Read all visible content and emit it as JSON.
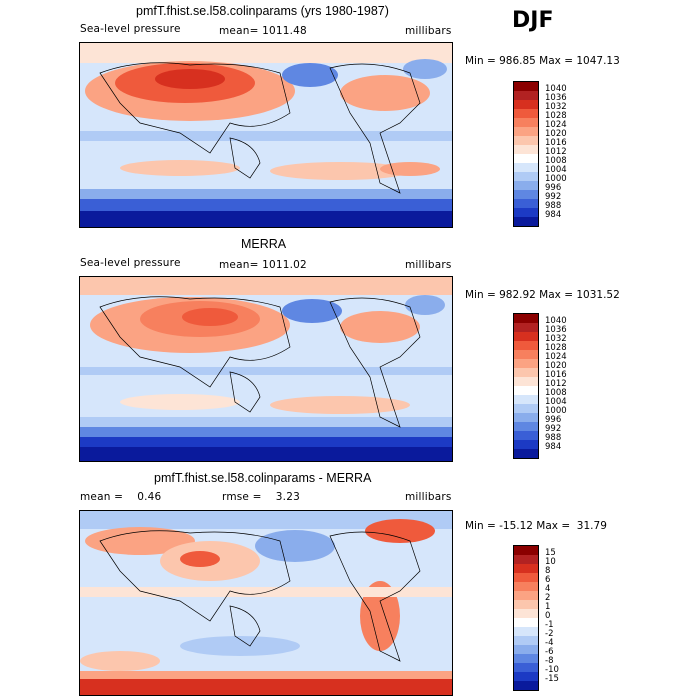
{
  "season": "DJF",
  "panels": [
    {
      "title": "pmfT.fhist.se.l58.colinparams (yrs 1980-1987)",
      "left_label": "Sea-level pressure",
      "mean_label": "mean= 1011.48",
      "units": "millibars",
      "minmax": "Min = 986.85 Max = 1047.13",
      "levels": [
        "1040",
        "1036",
        "1032",
        "1028",
        "1024",
        "1020",
        "1016",
        "1012",
        "1008",
        "1004",
        "1000",
        "996",
        "992",
        "988",
        "984"
      ],
      "colors": [
        "#8b0000",
        "#b22222",
        "#d7301f",
        "#ef5a3c",
        "#f7805e",
        "#fba383",
        "#fcc6ad",
        "#fde4d6",
        "#ffffff",
        "#d6e6fb",
        "#b0cbf5",
        "#8aadec",
        "#5f87e2",
        "#3a5fd6",
        "#1c3ac4",
        "#0a1a9c"
      ]
    },
    {
      "title": "MERRA",
      "left_label": "Sea-level pressure",
      "mean_label": "mean= 1011.02",
      "units": "millibars",
      "minmax": "Min = 982.92 Max = 1031.52",
      "levels": [
        "1040",
        "1036",
        "1032",
        "1028",
        "1024",
        "1020",
        "1016",
        "1012",
        "1008",
        "1004",
        "1000",
        "996",
        "992",
        "988",
        "984"
      ],
      "colors": [
        "#8b0000",
        "#b22222",
        "#d7301f",
        "#ef5a3c",
        "#f7805e",
        "#fba383",
        "#fcc6ad",
        "#fde4d6",
        "#ffffff",
        "#d6e6fb",
        "#b0cbf5",
        "#8aadec",
        "#5f87e2",
        "#3a5fd6",
        "#1c3ac4",
        "#0a1a9c"
      ]
    },
    {
      "title": "pmfT.fhist.se.l58.colinparams - MERRA",
      "left_label": "mean =    0.46",
      "mean_label": "rmse =    3.23",
      "units": "millibars",
      "minmax": "Min = -15.12 Max =  31.79",
      "levels": [
        "15",
        "10",
        "8",
        "6",
        "4",
        "2",
        "1",
        "0",
        "-1",
        "-2",
        "-4",
        "-6",
        "-8",
        "-10",
        "-15"
      ],
      "colors": [
        "#8b0000",
        "#b22222",
        "#d7301f",
        "#ef5a3c",
        "#f7805e",
        "#fba383",
        "#fcc6ad",
        "#fde4d6",
        "#ffffff",
        "#d6e6fb",
        "#b0cbf5",
        "#8aadec",
        "#5f87e2",
        "#3a5fd6",
        "#1c3ac4",
        "#0a1a9c"
      ]
    }
  ]
}
